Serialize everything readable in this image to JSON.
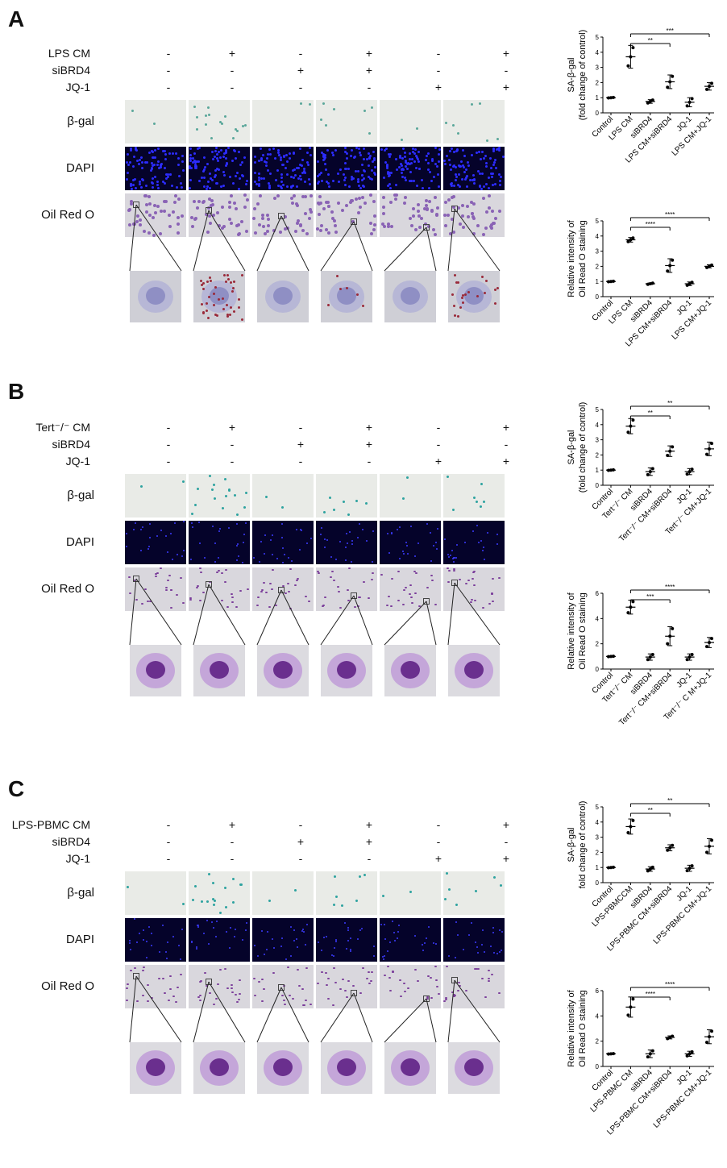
{
  "panels": [
    {
      "label": "A",
      "treatment_label": "LPS CM",
      "conditions": [
        {
          "label": "LPS CM",
          "values": [
            "-",
            "+",
            "-",
            "+",
            "-",
            "+"
          ]
        },
        {
          "label": "siBRD4",
          "values": [
            "-",
            "-",
            "+",
            "+",
            "-",
            "-"
          ]
        },
        {
          "label": "JQ-1",
          "values": [
            "-",
            "-",
            "-",
            "-",
            "+",
            "+"
          ]
        }
      ],
      "row_labels": [
        "β-gal",
        "DAPI",
        "Oil Red O"
      ],
      "gal_color": "#5aa79a",
      "dapi_color": "#2c2cff",
      "oil_color": "#8a63b5",
      "zoom_style": "rounded",
      "charts": [
        {
          "type": "scatter",
          "ylabel": "SA-β-gal",
          "ylabel2": "(fold change of control)",
          "ylim": [
            0,
            5
          ],
          "yticks": [
            0,
            1,
            2,
            3,
            4,
            5
          ],
          "categories": [
            "Control",
            "LPS CM",
            "siBRD4",
            "LPS CM+siBRD4",
            "JQ-1",
            "LPS CM+JQ-1"
          ],
          "means": [
            1.0,
            3.7,
            0.75,
            2.05,
            0.7,
            1.75
          ],
          "sds": [
            0.02,
            0.75,
            0.12,
            0.45,
            0.3,
            0.25
          ],
          "brackets": [
            {
              "to": 3,
              "label": "**"
            },
            {
              "to": 5,
              "label": "***"
            }
          ]
        },
        {
          "type": "scatter",
          "ylabel": "Relative intensity of",
          "ylabel2": "Oil Read O staining",
          "ylim": [
            0,
            5
          ],
          "yticks": [
            0,
            1,
            2,
            3,
            4,
            5
          ],
          "categories": [
            "Control",
            "LPS CM",
            "siBRD4",
            "LPS CM+siBRD4",
            "JQ-1",
            "LPS CM+JQ-1"
          ],
          "means": [
            1.0,
            3.75,
            0.85,
            2.05,
            0.85,
            2.0
          ],
          "sds": [
            0.02,
            0.15,
            0.05,
            0.45,
            0.12,
            0.1
          ],
          "brackets": [
            {
              "to": 3,
              "label": "****"
            },
            {
              "to": 5,
              "label": "****"
            }
          ]
        }
      ]
    },
    {
      "label": "B",
      "treatment_label": "Tert⁻/⁻ CM",
      "conditions": [
        {
          "label": "Tert⁻/⁻ CM",
          "values": [
            "-",
            "+",
            "-",
            "+",
            "-",
            "+"
          ]
        },
        {
          "label": "siBRD4",
          "values": [
            "-",
            "-",
            "+",
            "+",
            "-",
            "-"
          ]
        },
        {
          "label": "JQ-1",
          "values": [
            "-",
            "-",
            "-",
            "-",
            "+",
            "+"
          ]
        }
      ],
      "row_labels": [
        "β-gal",
        "DAPI",
        "Oil Red O"
      ],
      "gal_color": "#2ea3a0",
      "dapi_color": "#3b3bff",
      "oil_color": "#7a3c9a",
      "zoom_style": "spread",
      "charts": [
        {
          "type": "scatter",
          "ylabel": "SA-β-gal",
          "ylabel2": "(fold change of control)",
          "ylim": [
            0,
            5
          ],
          "yticks": [
            0,
            1,
            2,
            3,
            4,
            5
          ],
          "categories": [
            "Control",
            "Tert⁻/⁻ CM",
            "siBRD4",
            "Tert⁻/⁻ CM+siBRD4",
            "JQ-1",
            "Tert⁻/⁻ CM+JQ-1"
          ],
          "means": [
            1.0,
            3.9,
            0.9,
            2.25,
            0.9,
            2.4
          ],
          "sds": [
            0.02,
            0.5,
            0.25,
            0.35,
            0.2,
            0.45
          ],
          "brackets": [
            {
              "to": 3,
              "label": "**"
            },
            {
              "to": 5,
              "label": "**"
            }
          ]
        },
        {
          "type": "scatter",
          "ylabel": "Relative intensity of",
          "ylabel2": "Oil Read O staining",
          "ylim": [
            0,
            6
          ],
          "yticks": [
            0,
            2,
            4,
            6
          ],
          "categories": [
            "Control",
            "Tert⁻/⁻ CM",
            "siBRD4",
            "Tert⁻/⁻ CM+siBRD4",
            "JQ-1",
            "Tert⁻/⁻ C M+JQ-1"
          ],
          "means": [
            1.0,
            4.9,
            0.95,
            2.6,
            0.95,
            2.1
          ],
          "sds": [
            0.02,
            0.55,
            0.25,
            0.75,
            0.25,
            0.4
          ],
          "brackets": [
            {
              "to": 3,
              "label": "***"
            },
            {
              "to": 5,
              "label": "****"
            }
          ]
        }
      ]
    },
    {
      "label": "C",
      "treatment_label": "LPS-PBMC CM",
      "conditions": [
        {
          "label": "LPS-PBMC CM",
          "values": [
            "-",
            "+",
            "-",
            "+",
            "-",
            "+"
          ]
        },
        {
          "label": "siBRD4",
          "values": [
            "-",
            "-",
            "+",
            "+",
            "-",
            "-"
          ]
        },
        {
          "label": "JQ-1",
          "values": [
            "-",
            "-",
            "-",
            "-",
            "+",
            "+"
          ]
        }
      ],
      "row_labels": [
        "β-gal",
        "DAPI",
        "Oil Red O"
      ],
      "gal_color": "#2ea3a0",
      "dapi_color": "#3b3bff",
      "oil_color": "#7a3c9a",
      "zoom_style": "spread",
      "charts": [
        {
          "type": "scatter",
          "ylabel": "SA-β-gal",
          "ylabel2": "fold change of control)",
          "ylim": [
            0,
            5
          ],
          "yticks": [
            0,
            1,
            2,
            3,
            4,
            5
          ],
          "categories": [
            "Control",
            "LPS-PBMCCM",
            "siBRD4",
            "LPS-PBMC CM+siBRD4",
            "JQ-1",
            "LPS-PBMC CM+JQ-1"
          ],
          "means": [
            1.0,
            3.7,
            0.9,
            2.3,
            0.95,
            2.4
          ],
          "sds": [
            0.02,
            0.5,
            0.15,
            0.2,
            0.2,
            0.5
          ],
          "brackets": [
            {
              "to": 3,
              "label": "**"
            },
            {
              "to": 5,
              "label": "**"
            }
          ]
        },
        {
          "type": "scatter",
          "ylabel": "Relative intensity of",
          "ylabel2": "Oil Read O staining",
          "ylim": [
            0,
            6
          ],
          "yticks": [
            0,
            2,
            4,
            6
          ],
          "categories": [
            "Control",
            "LPS-PBMC CM",
            "siBRD4",
            "LPS-PBMC CM+siBRD4",
            "JQ-1",
            "LPS-PBMC CM+JQ-1"
          ],
          "means": [
            1.0,
            4.7,
            1.0,
            2.3,
            1.0,
            2.35
          ],
          "sds": [
            0.02,
            0.8,
            0.3,
            0.12,
            0.2,
            0.55
          ],
          "brackets": [
            {
              "to": 3,
              "label": "****"
            },
            {
              "to": 5,
              "label": "****"
            }
          ]
        }
      ]
    }
  ]
}
